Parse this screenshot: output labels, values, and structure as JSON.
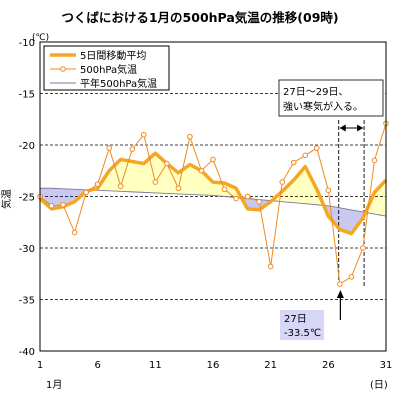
{
  "chart_data": {
    "type": "line",
    "title": "つくばにおける1月の500hPa気温の推移(09時)",
    "ylabel": "気温",
    "yunit": "(℃)",
    "xunit": "(日)",
    "xmonth": "1月",
    "ylim": [
      -40,
      -10
    ],
    "xlim": [
      1,
      31
    ],
    "yticks": [
      -10,
      -15,
      -20,
      -25,
      -30,
      -35,
      -40
    ],
    "xticks": [
      1,
      6,
      11,
      16,
      21,
      26,
      31
    ],
    "grid": true,
    "legend_position": "top-left",
    "x": [
      1,
      2,
      3,
      4,
      5,
      6,
      7,
      8,
      9,
      10,
      11,
      12,
      13,
      14,
      15,
      16,
      17,
      18,
      19,
      20,
      21,
      22,
      23,
      24,
      25,
      26,
      27,
      28,
      29,
      30,
      31
    ],
    "series": [
      {
        "name": "5日間移動平均",
        "color": "#f5a623",
        "values": [
          -25.2,
          -26.2,
          -26.0,
          -25.5,
          -24.5,
          -24.2,
          -22.5,
          -21.4,
          -21.6,
          -21.8,
          -20.8,
          -21.8,
          -22.7,
          -21.9,
          -22.5,
          -23.6,
          -23.7,
          -24.2,
          -26.2,
          -26.3,
          -25.5,
          -24.5,
          -23.4,
          -22.1,
          -24.3,
          -26.9,
          -28.2,
          -28.6,
          -27.1,
          -24.6,
          -23.4
        ]
      },
      {
        "name": "500hPa気温",
        "color": "#f08a1e",
        "values": [
          -25.0,
          -25.9,
          -25.8,
          -28.5,
          -24.6,
          -23.8,
          -20.3,
          -24.0,
          -20.4,
          -19.0,
          -23.6,
          -21.8,
          -24.2,
          -19.2,
          -22.5,
          -21.4,
          -24.3,
          -25.2,
          -25.0,
          -25.5,
          -31.8,
          -23.6,
          -21.7,
          -21.0,
          -20.3,
          -24.4,
          -33.5,
          -32.8,
          -30.0,
          -21.5,
          -17.9
        ]
      },
      {
        "name": "平年500hPa気温",
        "color": "#7a7a9a",
        "values": [
          -24.2,
          -24.2,
          -24.25,
          -24.3,
          -24.35,
          -24.4,
          -24.45,
          -24.5,
          -24.55,
          -24.6,
          -24.65,
          -24.7,
          -24.75,
          -24.8,
          -24.85,
          -24.9,
          -25.0,
          -25.1,
          -25.2,
          -25.3,
          -25.4,
          -25.5,
          -25.6,
          -25.7,
          -25.8,
          -25.9,
          -26.1,
          -26.3,
          -26.5,
          -26.7,
          -26.9
        ]
      }
    ],
    "annotations": [
      {
        "id": "cold-period",
        "line1": "27日～29日、",
        "line2": "強い寒気が入る。",
        "x_start": 27,
        "x_end": 29
      },
      {
        "id": "min-value",
        "line1": "27日",
        "line2": "-33.5℃",
        "x": 27,
        "y": -33.5
      }
    ],
    "fill_colors": {
      "above": "#ffffc0",
      "below": "#c8c8f0"
    }
  }
}
